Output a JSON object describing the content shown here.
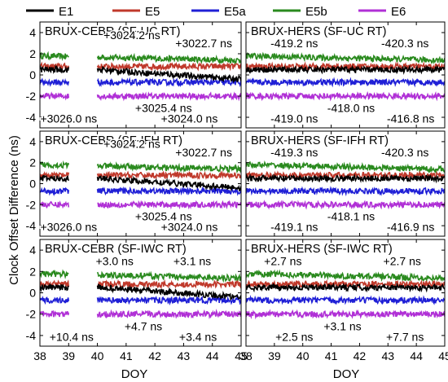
{
  "chart_data": {
    "type": "line",
    "legend": {
      "placement": "top",
      "entries": [
        {
          "name": "E1",
          "color": "#000000"
        },
        {
          "name": "E5",
          "color": "#c0392b"
        },
        {
          "name": "E5a",
          "color": "#1f1fd6"
        },
        {
          "name": "E5b",
          "color": "#2a8a1e"
        },
        {
          "name": "E6",
          "color": "#b030d6"
        }
      ]
    },
    "ylabel": "Clock Offset Difference (ns)",
    "xlabel_left": "DOY",
    "xlabel_right": "DOY",
    "xlim": [
      38,
      45
    ],
    "ylim": [
      -5,
      5
    ],
    "x_ticks": [
      "38",
      "39",
      "40",
      "41",
      "42",
      "43",
      "44",
      "45"
    ],
    "y_ticks": [
      "4",
      "2",
      "0",
      "-2",
      "-4"
    ],
    "grid": false,
    "series_levels": {
      "E1": 0.5,
      "E5": 0.8,
      "E5a": -0.7,
      "E5b": 1.8,
      "E6": -2.0
    },
    "gap": {
      "from": 39.0,
      "to": 40.0,
      "applies_to": "left column"
    },
    "panels": [
      {
        "title": "BRUX-CEBR (SF-UC RT)",
        "annotations": [
          {
            "text": "+3024.2 ns",
            "x": 41.2,
            "y": 3.4
          },
          {
            "text": "+3022.7 ns",
            "x": 43.7,
            "y": 2.6
          },
          {
            "text": "+3025.4 ns",
            "x": 42.3,
            "y": -3.5
          },
          {
            "text": "+3026.0 ns",
            "x": 39.0,
            "y": -4.5
          },
          {
            "text": "+3024.0 ns",
            "x": 43.2,
            "y": -4.5
          }
        ]
      },
      {
        "title": "BRUX-HERS (SF-UC RT)",
        "annotations": [
          {
            "text": "-419.2 ns",
            "x": 39.7,
            "y": 2.6
          },
          {
            "text": "-420.3 ns",
            "x": 43.6,
            "y": 2.6
          },
          {
            "text": "-418.0 ns",
            "x": 41.7,
            "y": -3.5
          },
          {
            "text": "-419.0 ns",
            "x": 39.7,
            "y": -4.5
          },
          {
            "text": "-416.8 ns",
            "x": 43.8,
            "y": -4.5
          }
        ]
      },
      {
        "title": "BRUX-CEBR (SF-IFH RT)",
        "annotations": [
          {
            "text": "+3024.2 ns",
            "x": 41.2,
            "y": 3.4
          },
          {
            "text": "+3022.7 ns",
            "x": 43.7,
            "y": 2.6
          },
          {
            "text": "+3025.4 ns",
            "x": 42.3,
            "y": -3.5
          },
          {
            "text": "+3026.0 ns",
            "x": 39.0,
            "y": -4.5
          },
          {
            "text": "+3024.0 ns",
            "x": 43.2,
            "y": -4.5
          }
        ]
      },
      {
        "title": "BRUX-HERS (SF-IFH RT)",
        "annotations": [
          {
            "text": "-419.3 ns",
            "x": 39.7,
            "y": 2.6
          },
          {
            "text": "-420.3 ns",
            "x": 43.6,
            "y": 2.6
          },
          {
            "text": "-418.1 ns",
            "x": 41.7,
            "y": -3.5
          },
          {
            "text": "-419.1 ns",
            "x": 39.7,
            "y": -4.5
          },
          {
            "text": "-416.9 ns",
            "x": 43.8,
            "y": -4.5
          }
        ]
      },
      {
        "title": "BRUX-CEBR (SF-IWC RT)",
        "annotations": [
          {
            "text": "+3.0 ns",
            "x": 40.6,
            "y": 2.6
          },
          {
            "text": "+3.1 ns",
            "x": 43.3,
            "y": 2.6
          },
          {
            "text": "+4.7 ns",
            "x": 41.6,
            "y": -3.5
          },
          {
            "text": "+10.4 ns",
            "x": 39.1,
            "y": -4.5
          },
          {
            "text": "+3.4 ns",
            "x": 43.5,
            "y": -4.5
          }
        ]
      },
      {
        "title": "BRUX-HERS (SF-IWC RT)",
        "annotations": [
          {
            "text": "+2.7 ns",
            "x": 39.3,
            "y": 2.6
          },
          {
            "text": "+2.7 ns",
            "x": 43.5,
            "y": 2.6
          },
          {
            "text": "+3.1 ns",
            "x": 41.4,
            "y": -3.5
          },
          {
            "text": "+2.5 ns",
            "x": 39.7,
            "y": -4.5
          },
          {
            "text": "+7.7 ns",
            "x": 43.6,
            "y": -4.5
          }
        ]
      }
    ]
  }
}
